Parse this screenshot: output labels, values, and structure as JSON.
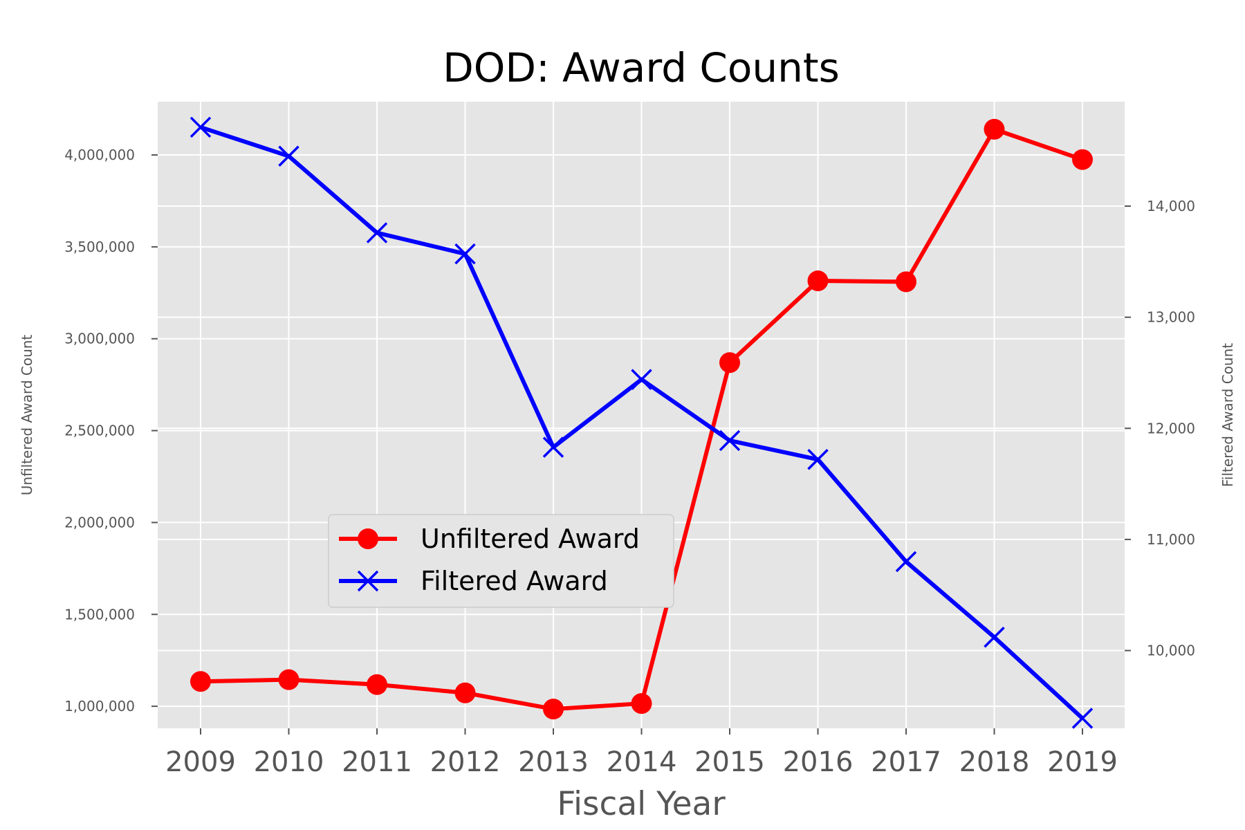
{
  "chart_data": {
    "type": "line",
    "title": "DOD: Award Counts",
    "xlabel": "Fiscal Year",
    "ylabel_left": "Unfiltered Award Count",
    "ylabel_right": "Filtered Award Count",
    "categories": [
      "2009",
      "2010",
      "2011",
      "2012",
      "2013",
      "2014",
      "2015",
      "2016",
      "2017",
      "2018",
      "2019"
    ],
    "ylim_left": [
      880000,
      4290000
    ],
    "ylim_right": [
      9300000,
      14940000
    ],
    "yticks_left": [
      1000000,
      1500000,
      2000000,
      2500000,
      3000000,
      3500000,
      4000000
    ],
    "yticks_left_labels": [
      "1,000,000",
      "1,500,000",
      "2,000,000",
      "2,500,000",
      "3,000,000",
      "3,500,000",
      "4,000,000"
    ],
    "yticks_right": [
      10000,
      11000,
      12000,
      13000,
      14000
    ],
    "yticks_right_labels": [
      "10,000",
      "11,000",
      "12,000",
      "13,000",
      "14,000"
    ],
    "ylim_right_units": [
      9300,
      14940
    ],
    "grid": true,
    "legend_position": "center-left",
    "series": [
      {
        "name": "Unfiltered Award",
        "axis": "left",
        "color": "#ff0000",
        "marker": "circle",
        "values": [
          1135000,
          1145000,
          1118000,
          1073000,
          985000,
          1015000,
          2870000,
          3315000,
          3310000,
          4140000,
          3975000
        ]
      },
      {
        "name": "Filtered Award",
        "axis": "right",
        "color": "#0000ff",
        "marker": "x",
        "values": [
          14710,
          14450,
          13760,
          13570,
          11830,
          12440,
          11890,
          11720,
          10800,
          10120,
          9390
        ]
      }
    ]
  }
}
